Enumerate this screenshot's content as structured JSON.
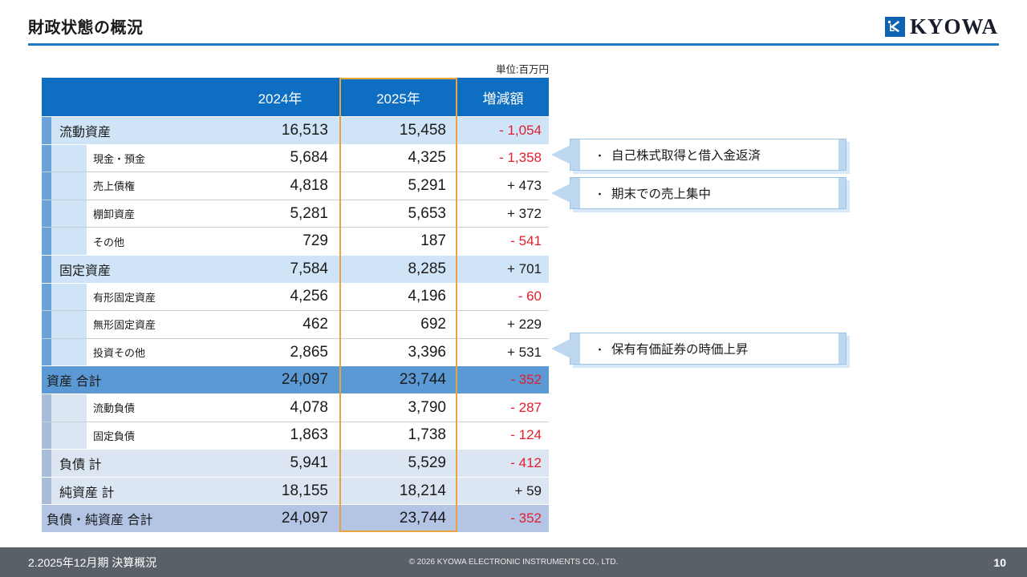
{
  "slide": {
    "title": "財政状態の概況",
    "unit_label": "単位:百万円",
    "logo_text": "KYOWA",
    "footer_left": "2.2025年12月期 決算概況",
    "footer_center": "© 2026 KYOWA ELECTRONIC INSTRUMENTS CO., LTD.",
    "page_number": "10"
  },
  "colors": {
    "header_blue": "#0d6ec2",
    "asset_bar_blue": "#6aa3d9",
    "asset_row_blue": "#cfe4f7",
    "asset_total_blue": "#5b99d4",
    "liability_bar_blue": "#a9bcd9",
    "liability_row_blue": "#dce6f2",
    "liability_total_blue": "#b3c4e4",
    "highlight_orange": "#e8a43e",
    "negative_red": "#e31e2d",
    "title_rule_blue": "#1e78c8",
    "footer_gray": "#5a6067"
  },
  "table": {
    "columns": [
      "2024年",
      "2025年",
      "増減額"
    ],
    "rows": [
      {
        "label": "流動資産",
        "type": "parent-asset",
        "y2024": "16,513",
        "y2025": "15,458",
        "diff": "- 1,054"
      },
      {
        "label": "現金・預金",
        "type": "child-asset",
        "y2024": "5,684",
        "y2025": "4,325",
        "diff": "- 1,358"
      },
      {
        "label": "売上債権",
        "type": "child-asset",
        "y2024": "4,818",
        "y2025": "5,291",
        "diff": "+ 473"
      },
      {
        "label": "棚卸資産",
        "type": "child-asset",
        "y2024": "5,281",
        "y2025": "5,653",
        "diff": "+ 372"
      },
      {
        "label": "その他",
        "type": "child-asset",
        "y2024": "729",
        "y2025": "187",
        "diff": "- 541"
      },
      {
        "label": "固定資産",
        "type": "parent-asset",
        "y2024": "7,584",
        "y2025": "8,285",
        "diff": "+ 701"
      },
      {
        "label": "有形固定資産",
        "type": "child-asset",
        "y2024": "4,256",
        "y2025": "4,196",
        "diff": "- 60"
      },
      {
        "label": "無形固定資産",
        "type": "child-asset",
        "y2024": "462",
        "y2025": "692",
        "diff": "+ 229"
      },
      {
        "label": "投資その他",
        "type": "child-asset",
        "y2024": "2,865",
        "y2025": "3,396",
        "diff": "+ 531"
      },
      {
        "label": "資産 合計",
        "type": "total-asset",
        "y2024": "24,097",
        "y2025": "23,744",
        "diff": "- 352"
      },
      {
        "label": "流動負債",
        "type": "child-liab",
        "y2024": "4,078",
        "y2025": "3,790",
        "diff": "- 287"
      },
      {
        "label": "固定負債",
        "type": "child-liab",
        "y2024": "1,863",
        "y2025": "1,738",
        "diff": "- 124"
      },
      {
        "label": "負債 計",
        "type": "parent-liab",
        "y2024": "5,941",
        "y2025": "5,529",
        "diff": "- 412"
      },
      {
        "label": "純資産 計",
        "type": "parent-liab",
        "y2024": "18,155",
        "y2025": "18,214",
        "diff": "+ 59"
      },
      {
        "label": "負債・純資産 合計",
        "type": "total-liab",
        "y2024": "24,097",
        "y2025": "23,744",
        "diff": "- 352"
      }
    ]
  },
  "callouts": [
    {
      "bullet": "・",
      "text": "自己株式取得と借入金返済"
    },
    {
      "bullet": "・",
      "text": "期末での売上集中"
    },
    {
      "bullet": "・",
      "text": "保有有価証券の時価上昇"
    }
  ]
}
